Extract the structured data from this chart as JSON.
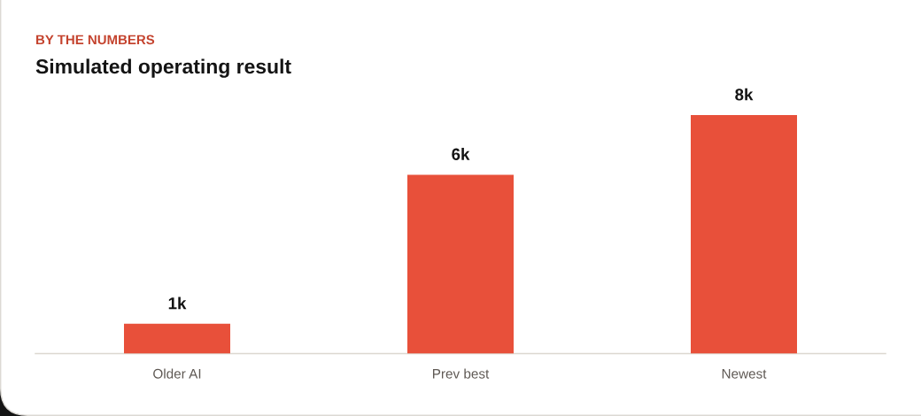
{
  "chart_data": {
    "type": "bar",
    "subtitle": "BY THE NUMBERS",
    "title": "Simulated operating result",
    "categories": [
      "Older AI",
      "Prev best",
      "Newest"
    ],
    "values": [
      1000,
      6000,
      8000
    ],
    "value_labels": [
      "1k",
      "6k",
      "8k"
    ],
    "color": "#e8503a",
    "tick_labels": "x"
  }
}
